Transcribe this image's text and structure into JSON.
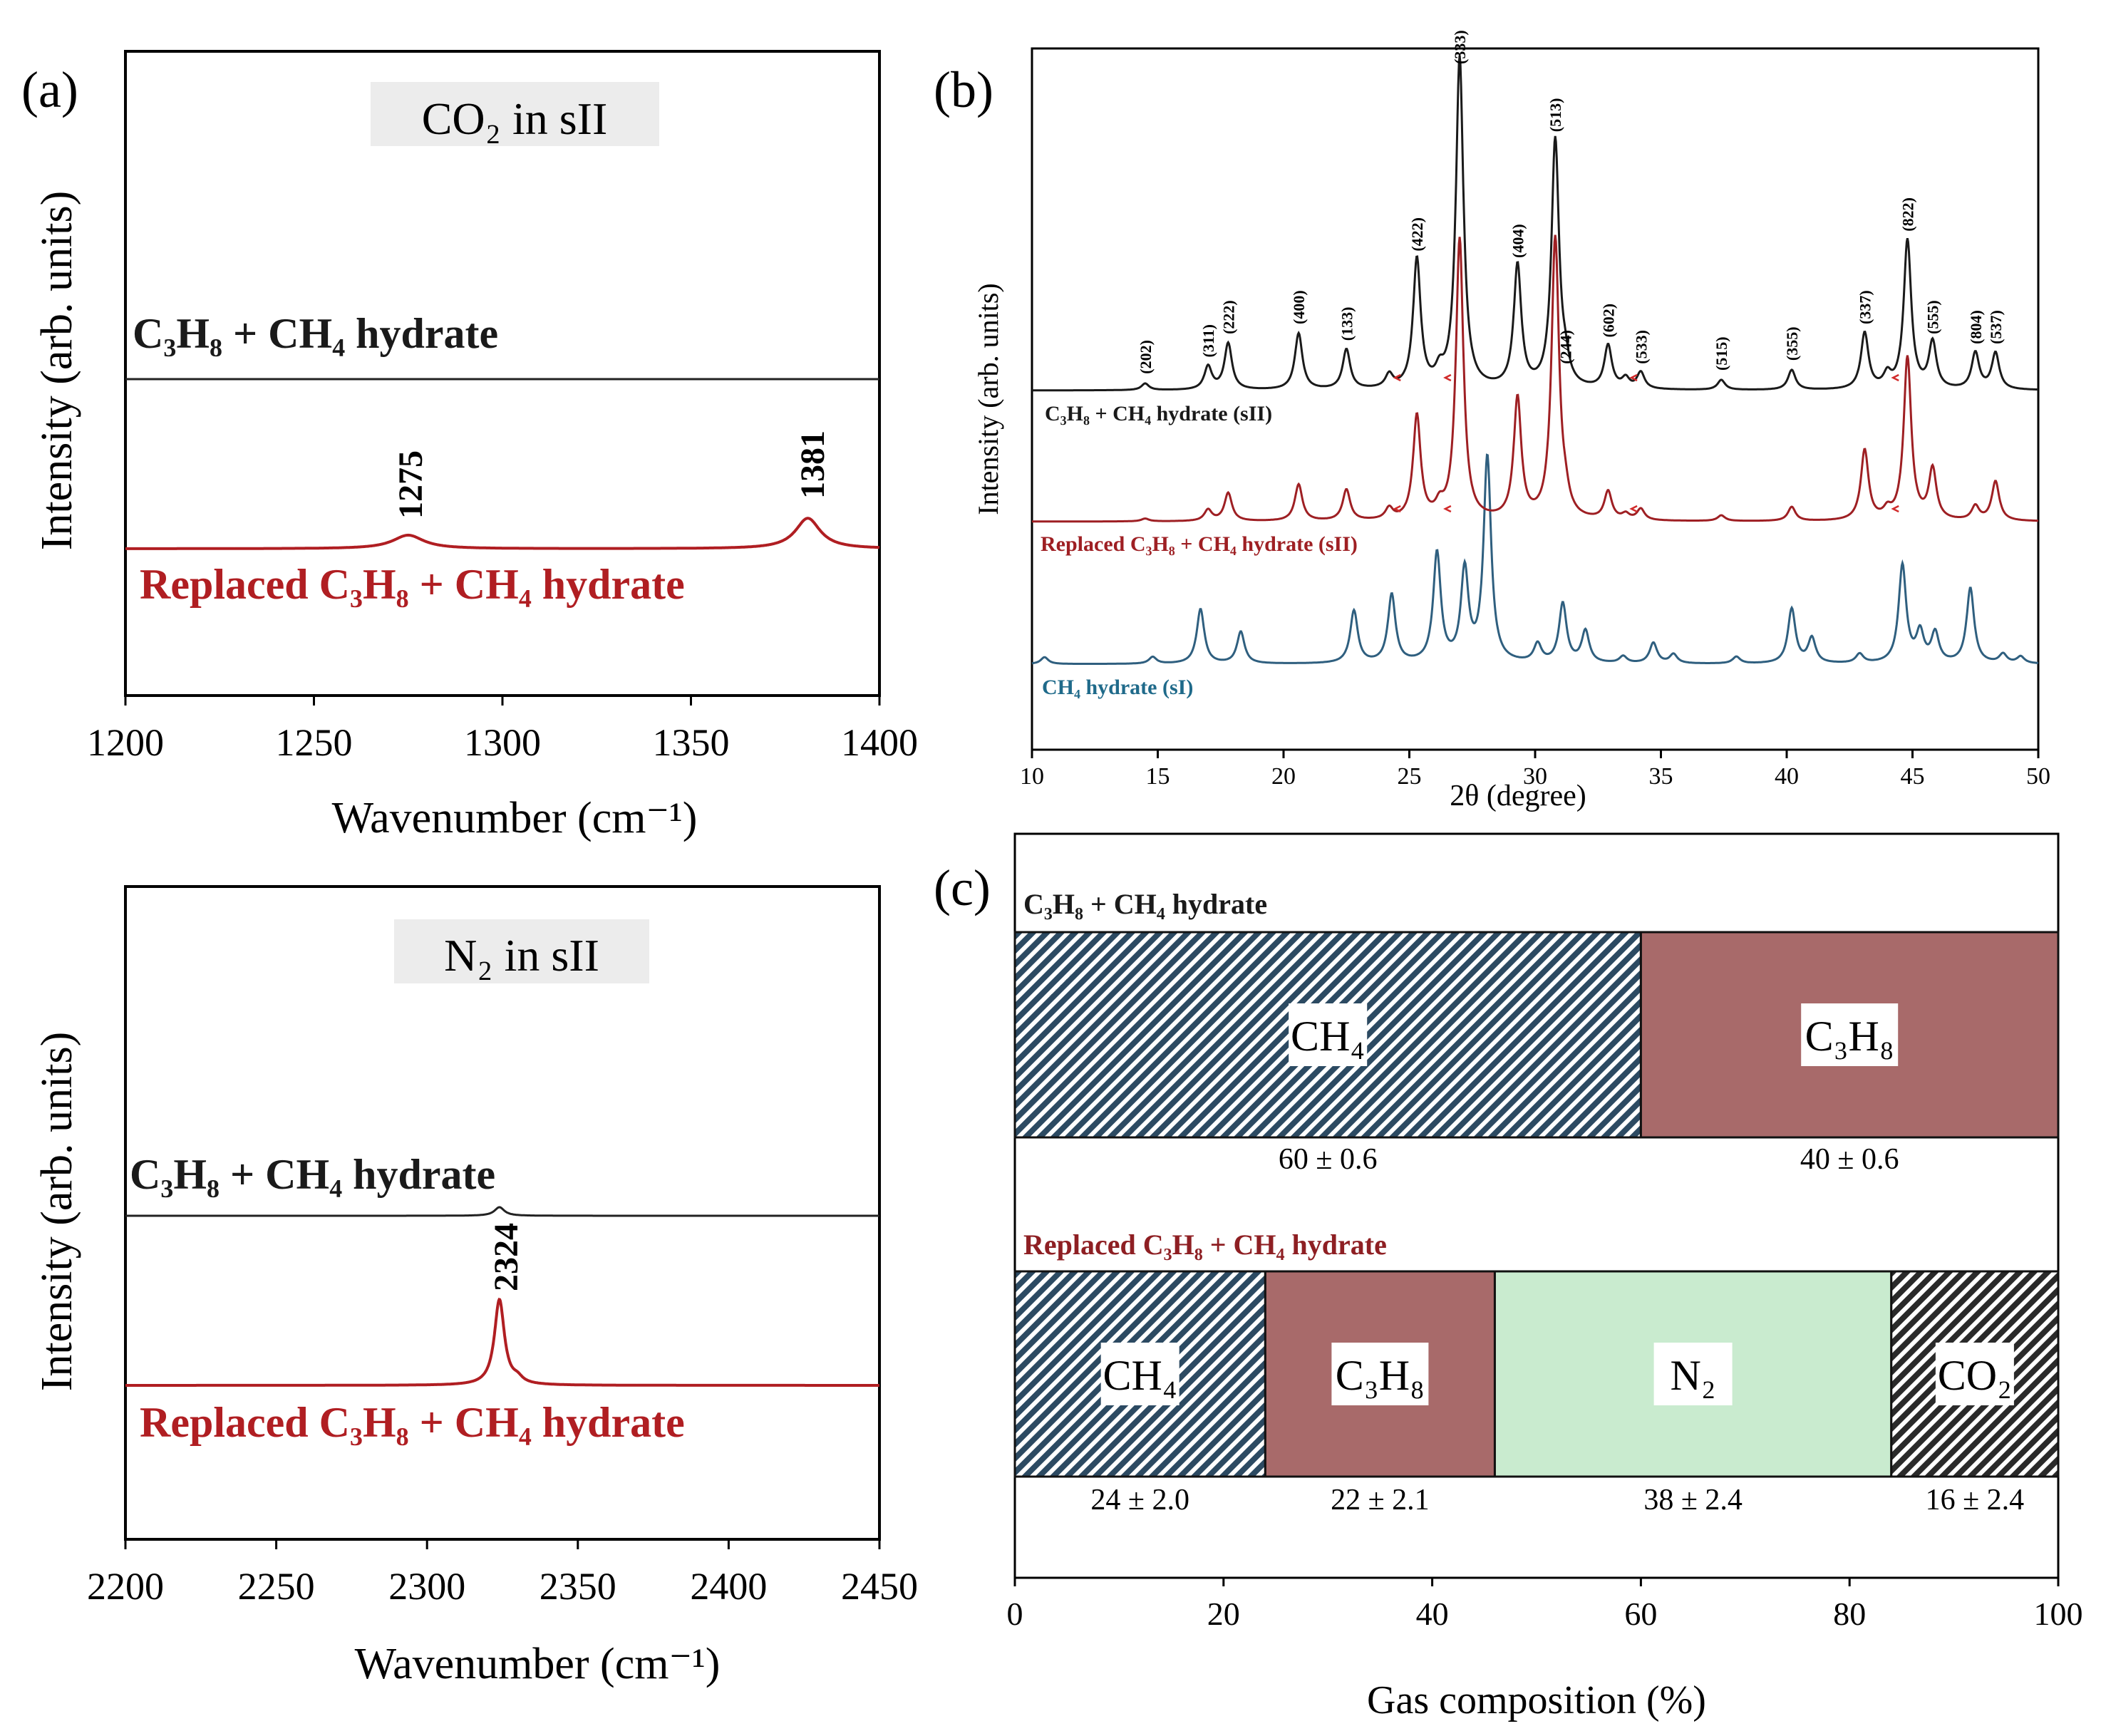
{
  "chart_data": [
    {
      "panel": "(a)",
      "type": "line",
      "box_label": "CO₂ in sII",
      "ylabel": "Intensity (arb. units)",
      "xlabel": "Wavenumber (cm⁻¹)",
      "xlim": [
        1200,
        1400
      ],
      "xticks": [
        "1200",
        "1250",
        "1300",
        "1350",
        "1400"
      ],
      "series": [
        {
          "name": "C₃H₈ + CH₄ hydrate",
          "color": "#222222",
          "peaks": []
        },
        {
          "name": "Replaced C₃H₈ + CH₄ hydrate",
          "color": "#b01e22",
          "peaks": [
            {
              "x": 1275,
              "height": 0.2,
              "width": 5
            },
            {
              "x": 1381,
              "height": 0.45,
              "width": 4
            }
          ]
        }
      ],
      "peak_labels": [
        "1275",
        "1381"
      ]
    },
    {
      "panel": "",
      "type": "line",
      "box_label": "N₂ in sII",
      "ylabel": "Intensity (arb. units)",
      "xlabel": "Wavenumber (cm⁻¹)",
      "xlim": [
        2200,
        2450
      ],
      "xticks": [
        "2200",
        "2250",
        "2300",
        "2350",
        "2400",
        "2450"
      ],
      "series": [
        {
          "name": "C₃H₈ + CH₄ hydrate",
          "color": "#222222",
          "peaks": [
            {
              "x": 2324,
              "height": 0.08,
              "width": 2
            }
          ]
        },
        {
          "name": "Replaced C₃H₈ + CH₄ hydrate",
          "color": "#b01e22",
          "peaks": [
            {
              "x": 2324,
              "height": 1.0,
              "width": 2
            },
            {
              "x": 2330,
              "height": 0.06,
              "width": 2
            }
          ]
        }
      ],
      "peak_labels": [
        "2324"
      ]
    },
    {
      "panel": "(b)",
      "type": "line",
      "ylabel": "Intensity (arb. units)",
      "xlabel": "2θ (degree)",
      "xlim": [
        10,
        50
      ],
      "xticks": [
        "10",
        "15",
        "20",
        "25",
        "30",
        "35",
        "40",
        "45",
        "50"
      ],
      "series": [
        {
          "name": "C₃H₈ + CH₄ hydrate (sII)",
          "color": "#1a1a1a",
          "peaks": [
            {
              "x": 14.5,
              "h": 0.02
            },
            {
              "x": 17.0,
              "h": 0.07
            },
            {
              "x": 17.8,
              "h": 0.14
            },
            {
              "x": 20.6,
              "h": 0.17
            },
            {
              "x": 22.5,
              "h": 0.12
            },
            {
              "x": 24.2,
              "h": 0.04
            },
            {
              "x": 25.3,
              "h": 0.39
            },
            {
              "x": 26.2,
              "h": 0.04
            },
            {
              "x": 27.0,
              "h": 1.0
            },
            {
              "x": 29.3,
              "h": 0.37
            },
            {
              "x": 30.8,
              "h": 0.75
            },
            {
              "x": 31.2,
              "h": 0.05
            },
            {
              "x": 32.9,
              "h": 0.13
            },
            {
              "x": 33.6,
              "h": 0.03
            },
            {
              "x": 34.2,
              "h": 0.05
            },
            {
              "x": 37.4,
              "h": 0.03
            },
            {
              "x": 40.2,
              "h": 0.06
            },
            {
              "x": 43.1,
              "h": 0.17
            },
            {
              "x": 44.0,
              "h": 0.04
            },
            {
              "x": 44.8,
              "h": 0.45
            },
            {
              "x": 45.8,
              "h": 0.14
            },
            {
              "x": 47.5,
              "h": 0.11
            },
            {
              "x": 48.3,
              "h": 0.11
            }
          ]
        },
        {
          "name": "Replaced C₃H₈ + CH₄ hydrate (sII)",
          "color": "#9e1f23",
          "peaks": [
            {
              "x": 14.5,
              "h": 0.01
            },
            {
              "x": 17.0,
              "h": 0.04
            },
            {
              "x": 17.8,
              "h": 0.1
            },
            {
              "x": 20.6,
              "h": 0.13
            },
            {
              "x": 22.5,
              "h": 0.11
            },
            {
              "x": 24.2,
              "h": 0.04
            },
            {
              "x": 25.3,
              "h": 0.37
            },
            {
              "x": 26.2,
              "h": 0.04
            },
            {
              "x": 27.0,
              "h": 1.0
            },
            {
              "x": 29.3,
              "h": 0.43
            },
            {
              "x": 30.8,
              "h": 1.0
            },
            {
              "x": 31.2,
              "h": 0.05
            },
            {
              "x": 32.9,
              "h": 0.1
            },
            {
              "x": 33.6,
              "h": 0.02
            },
            {
              "x": 34.2,
              "h": 0.04
            },
            {
              "x": 37.4,
              "h": 0.02
            },
            {
              "x": 40.2,
              "h": 0.05
            },
            {
              "x": 43.1,
              "h": 0.25
            },
            {
              "x": 44.0,
              "h": 0.03
            },
            {
              "x": 44.8,
              "h": 0.58
            },
            {
              "x": 45.8,
              "h": 0.18
            },
            {
              "x": 47.5,
              "h": 0.05
            },
            {
              "x": 48.3,
              "h": 0.14
            }
          ]
        },
        {
          "name": "CH₄ hydrate (sI)",
          "color": "#2f5f7f",
          "peaks": [
            {
              "x": 10.5,
              "h": 0.03
            },
            {
              "x": 14.8,
              "h": 0.03
            },
            {
              "x": 16.7,
              "h": 0.24
            },
            {
              "x": 18.3,
              "h": 0.14
            },
            {
              "x": 22.8,
              "h": 0.23
            },
            {
              "x": 24.3,
              "h": 0.3
            },
            {
              "x": 26.1,
              "h": 0.48
            },
            {
              "x": 27.2,
              "h": 0.4
            },
            {
              "x": 28.1,
              "h": 0.9
            },
            {
              "x": 30.1,
              "h": 0.08
            },
            {
              "x": 31.1,
              "h": 0.26
            },
            {
              "x": 32.0,
              "h": 0.14
            },
            {
              "x": 33.5,
              "h": 0.03
            },
            {
              "x": 34.7,
              "h": 0.09
            },
            {
              "x": 35.5,
              "h": 0.04
            },
            {
              "x": 38.0,
              "h": 0.03
            },
            {
              "x": 40.2,
              "h": 0.24
            },
            {
              "x": 41.0,
              "h": 0.11
            },
            {
              "x": 42.9,
              "h": 0.04
            },
            {
              "x": 44.6,
              "h": 0.43
            },
            {
              "x": 45.3,
              "h": 0.13
            },
            {
              "x": 45.9,
              "h": 0.13
            },
            {
              "x": 47.3,
              "h": 0.33
            },
            {
              "x": 48.6,
              "h": 0.04
            },
            {
              "x": 49.3,
              "h": 0.03
            }
          ]
        }
      ],
      "peak_labels": [
        {
          "x": 14.5,
          "text": "(202)"
        },
        {
          "x": 17.0,
          "text": "(311)"
        },
        {
          "x": 17.8,
          "text": "(222)"
        },
        {
          "x": 20.6,
          "text": "(400)"
        },
        {
          "x": 22.5,
          "text": "(133)"
        },
        {
          "x": 25.3,
          "text": "(422)"
        },
        {
          "x": 27.0,
          "text": "(333)"
        },
        {
          "x": 29.3,
          "text": "(404)"
        },
        {
          "x": 30.8,
          "text": "(513)"
        },
        {
          "x": 31.2,
          "text": "(244)"
        },
        {
          "x": 32.9,
          "text": "(602)"
        },
        {
          "x": 34.2,
          "text": "(533)"
        },
        {
          "x": 37.4,
          "text": "(515)"
        },
        {
          "x": 40.2,
          "text": "(355)"
        },
        {
          "x": 43.1,
          "text": "(337)"
        },
        {
          "x": 44.8,
          "text": "(822)"
        },
        {
          "x": 45.8,
          "text": "(555)"
        },
        {
          "x": 47.5,
          "text": "(804)"
        },
        {
          "x": 48.3,
          "text": "(537)"
        }
      ],
      "ice_marker_positions": [
        24.2,
        26.2,
        33.6,
        44.0
      ]
    },
    {
      "panel": "(c)",
      "type": "bar",
      "stacked": true,
      "orientation": "horizontal",
      "xlabel": "Gas composition (%)",
      "xlim": [
        0,
        100
      ],
      "xticks": [
        "0",
        "20",
        "40",
        "60",
        "80",
        "100"
      ],
      "bars": [
        {
          "name": "C₃H₈ + CH₄ hydrate",
          "segments": [
            {
              "label": "CH₄",
              "value": 60,
              "value_text": "60 ± 0.6",
              "fill": "ch4-hatch"
            },
            {
              "label": "C₃H₈",
              "value": 40,
              "value_text": "40 ± 0.6",
              "fill": "#a86a6a"
            }
          ]
        },
        {
          "name": "Replaced C₃H₈ + CH₄ hydrate",
          "segments": [
            {
              "label": "CH₄",
              "value": 24,
              "value_text": "24 ± 2.0",
              "fill": "ch4-hatch"
            },
            {
              "label": "C₃H₈",
              "value": 22,
              "value_text": "22 ± 2.1",
              "fill": "#a86a6a"
            },
            {
              "label": "N₂",
              "value": 38,
              "value_text": "38 ± 2.4",
              "fill": "#c9ebcf"
            },
            {
              "label": "CO₂",
              "value": 16,
              "value_text": "16 ± 2.4",
              "fill": "co2-hatch"
            }
          ]
        }
      ]
    }
  ]
}
